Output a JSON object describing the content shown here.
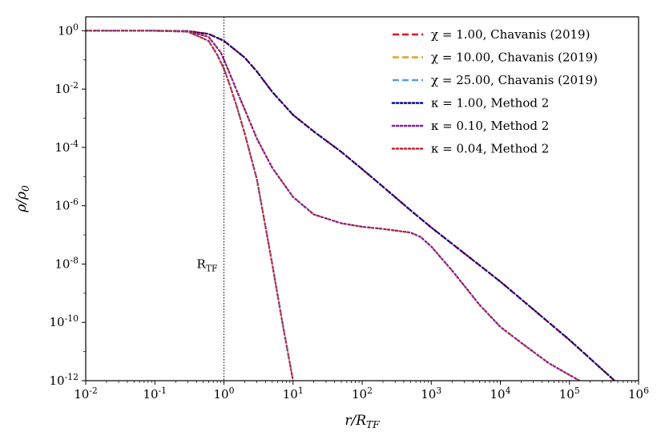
{
  "chart_data": {
    "type": "line",
    "title": "",
    "xlabel": "r/R_TF",
    "ylabel": "ρ/ρ_0",
    "xscale": "log",
    "yscale": "log",
    "xlim": [
      0.01,
      1000000
    ],
    "ylim": [
      1e-12,
      3
    ],
    "x_ticks": [
      {
        "value": 0.01,
        "label": "10^-2"
      },
      {
        "value": 0.1,
        "label": "10^-1"
      },
      {
        "value": 1,
        "label": "10^0"
      },
      {
        "value": 10,
        "label": "10^1"
      },
      {
        "value": 100,
        "label": "10^2"
      },
      {
        "value": 1000,
        "label": "10^3"
      },
      {
        "value": 10000,
        "label": "10^4"
      },
      {
        "value": 100000,
        "label": "10^5"
      },
      {
        "value": 1000000,
        "label": "10^6"
      }
    ],
    "y_ticks": [
      {
        "value": 1,
        "label": "10^0"
      },
      {
        "value": 0.01,
        "label": "10^-2"
      },
      {
        "value": 0.0001,
        "label": "10^-4"
      },
      {
        "value": 1e-06,
        "label": "10^-6"
      },
      {
        "value": 1e-08,
        "label": "10^-8"
      },
      {
        "value": 1e-10,
        "label": "10^-10"
      },
      {
        "value": 1e-12,
        "label": "10^-12"
      }
    ],
    "annotations": [
      {
        "text": "R_TF",
        "x": 1,
        "style": "vertical dotted line"
      }
    ],
    "legend_position": "top-right",
    "series": [
      {
        "name": "χ = 1.00, Chavanis (2019)",
        "color": "#e8141c",
        "style": "dashed",
        "x": [
          0.01,
          0.1,
          0.3,
          0.6,
          1,
          2,
          3,
          5,
          10,
          20,
          50,
          100,
          200,
          500,
          1000,
          10000,
          100000,
          450000
        ],
        "y": [
          1,
          1,
          0.97,
          0.78,
          0.45,
          0.12,
          0.04,
          0.008,
          0.0013,
          0.00035,
          7e-05,
          1.8e-05,
          4.5e-06,
          7e-07,
          1.8e-07,
          2.5e-09,
          2.5e-11,
          1e-12
        ]
      },
      {
        "name": "χ = 10.00, Chavanis (2019)",
        "color": "#e5a01c",
        "style": "dashed",
        "x": [
          0.01,
          0.1,
          0.3,
          0.6,
          0.9,
          1.1,
          1.5,
          2,
          3,
          5,
          10,
          20,
          50,
          100,
          200,
          500,
          700,
          1000,
          2000,
          5000,
          10000,
          20000,
          50000,
          140000
        ],
        "y": [
          1,
          1,
          0.95,
          0.62,
          0.18,
          0.06,
          0.01,
          0.002,
          0.0002,
          2e-05,
          2e-06,
          5e-07,
          2.5e-07,
          1.9e-07,
          1.6e-07,
          1.2e-07,
          8.5e-08,
          4e-08,
          6e-09,
          4e-10,
          7e-11,
          2e-11,
          4e-12,
          1e-12
        ]
      },
      {
        "name": "χ = 25.00, Chavanis (2019)",
        "color": "#5a9ee0",
        "style": "dashed",
        "x": [
          0.01,
          0.1,
          0.3,
          0.6,
          0.8,
          1,
          1.2,
          1.5,
          2,
          3,
          5,
          7,
          10
        ],
        "y": [
          1,
          1,
          0.93,
          0.45,
          0.15,
          0.05,
          0.015,
          0.003,
          0.0003,
          8e-06,
          1e-08,
          1e-10,
          1e-12
        ]
      },
      {
        "name": "κ = 1.00, Method 2",
        "color": "#0a0a80",
        "style": "dotted",
        "x": [
          0.01,
          0.1,
          0.3,
          0.6,
          1,
          2,
          3,
          5,
          10,
          20,
          50,
          100,
          200,
          500,
          1000,
          10000,
          100000,
          450000
        ],
        "y": [
          1,
          1,
          0.97,
          0.78,
          0.45,
          0.12,
          0.04,
          0.008,
          0.0013,
          0.00035,
          7e-05,
          1.8e-05,
          4.5e-06,
          7e-07,
          1.8e-07,
          2.5e-09,
          2.5e-11,
          1e-12
        ]
      },
      {
        "name": "κ = 0.10, Method 2",
        "color": "#8a18a0",
        "style": "dotted",
        "x": [
          0.01,
          0.1,
          0.3,
          0.6,
          0.9,
          1.1,
          1.5,
          2,
          3,
          5,
          10,
          20,
          50,
          100,
          200,
          500,
          700,
          1000,
          2000,
          5000,
          10000,
          20000,
          50000,
          140000
        ],
        "y": [
          1,
          1,
          0.95,
          0.62,
          0.18,
          0.06,
          0.01,
          0.002,
          0.0002,
          2e-05,
          2e-06,
          5e-07,
          2.5e-07,
          1.9e-07,
          1.6e-07,
          1.2e-07,
          8.5e-08,
          4e-08,
          6e-09,
          4e-10,
          7e-11,
          2e-11,
          4e-12,
          1e-12
        ]
      },
      {
        "name": "κ = 0.04, Method 2",
        "color": "#c0283a",
        "style": "dotted",
        "x": [
          0.01,
          0.1,
          0.3,
          0.6,
          0.8,
          1,
          1.2,
          1.5,
          2,
          3,
          5,
          7,
          10
        ],
        "y": [
          1,
          1,
          0.93,
          0.45,
          0.15,
          0.05,
          0.015,
          0.003,
          0.0003,
          8e-06,
          1e-08,
          1e-10,
          1e-12
        ]
      }
    ]
  }
}
